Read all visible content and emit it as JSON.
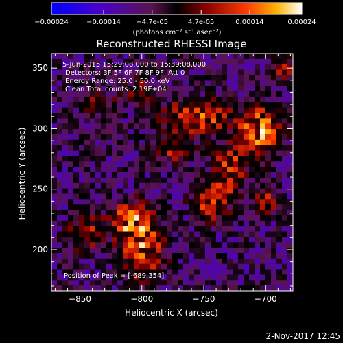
{
  "chart_data": {
    "type": "heatmap",
    "title": "Reconstructed RHESSI Image",
    "xlabel": "Heliocentric X (arcsec)",
    "ylabel": "Heliocentric Y (arcsec)",
    "xlim": [
      -873,
      -678
    ],
    "ylim": [
      166,
      362
    ],
    "x_ticks": [
      -850,
      -800,
      -750,
      -700
    ],
    "y_ticks": [
      200,
      250,
      300,
      350
    ],
    "colorbar": {
      "range": [
        -0.00024,
        0.00024
      ],
      "ticks": [
        "-0.00024",
        "-0.00014",
        "-4.7e-05",
        "4.7e-05",
        "0.00014",
        "0.00024"
      ],
      "unit_label": "(photons cm⁻² s⁻¹ asec⁻²)"
    },
    "annotations": [
      "5-Jun-2015 15:29:08.000 to 15:39:08.000",
      "Detectors: 3F 5F 6F 7F 8F 9F, Att 0",
      "Energy Range: 25.0 - 50.0 keV",
      "Clean     Total counts: 2.19E+04"
    ],
    "peak_label": "Position of Peak = [-689,354]",
    "peak_position": [
      -689,
      354
    ],
    "timestamp": "2-Nov-2017 12:45",
    "hot_spots": [
      {
        "x": -800,
        "y": 202,
        "strength": 0.95,
        "sx": 12,
        "sy": 18
      },
      {
        "x": -810,
        "y": 225,
        "strength": 0.75,
        "sx": 10,
        "sy": 10
      },
      {
        "x": -755,
        "y": 310,
        "strength": 0.85,
        "sx": 18,
        "sy": 10
      },
      {
        "x": -705,
        "y": 298,
        "strength": 1.0,
        "sx": 12,
        "sy": 14
      },
      {
        "x": -730,
        "y": 265,
        "strength": 0.8,
        "sx": 9,
        "sy": 14
      },
      {
        "x": -745,
        "y": 238,
        "strength": 0.7,
        "sx": 10,
        "sy": 10
      },
      {
        "x": -775,
        "y": 282,
        "strength": 0.6,
        "sx": 9,
        "sy": 8
      },
      {
        "x": -700,
        "y": 240,
        "strength": 0.55,
        "sx": 8,
        "sy": 8
      },
      {
        "x": -845,
        "y": 215,
        "strength": 0.55,
        "sx": 10,
        "sy": 12
      },
      {
        "x": -835,
        "y": 320,
        "strength": 0.45,
        "sx": 10,
        "sy": 8
      },
      {
        "x": -685,
        "y": 350,
        "strength": 0.6,
        "sx": 7,
        "sy": 7
      },
      {
        "x": -800,
        "y": 330,
        "strength": 0.4,
        "sx": 10,
        "sy": 8
      }
    ]
  }
}
